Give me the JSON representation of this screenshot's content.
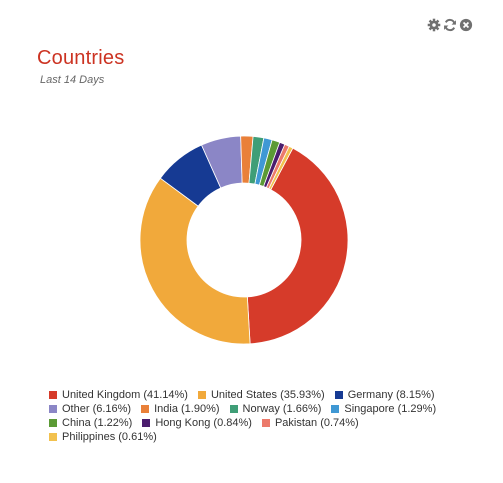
{
  "widget": {
    "title": "Countries",
    "subtitle": "Last 14 Days",
    "title_color": "#cc3322",
    "toolbar": {
      "icons": [
        "gear-icon",
        "refresh-icon",
        "close-icon"
      ]
    }
  },
  "chart_data": {
    "type": "pie",
    "subtype": "donut",
    "legend_position": "bottom",
    "series": [
      {
        "name": "United Kingdom",
        "value": 41.14,
        "label": "United Kingdom (41.14%)",
        "color": "#d63b2a"
      },
      {
        "name": "United States",
        "value": 35.93,
        "label": "United States (35.93%)",
        "color": "#f1a93b"
      },
      {
        "name": "Germany",
        "value": 8.15,
        "label": "Germany (8.15%)",
        "color": "#163a93"
      },
      {
        "name": "Other",
        "value": 6.16,
        "label": "Other (6.16%)",
        "color": "#8b86c6"
      },
      {
        "name": "India",
        "value": 1.9,
        "label": "India (1.90%)",
        "color": "#e98039"
      },
      {
        "name": "Norway",
        "value": 1.66,
        "label": "Norway (1.66%)",
        "color": "#3f9e77"
      },
      {
        "name": "Singapore",
        "value": 1.29,
        "label": "Singapore (1.29%)",
        "color": "#3f98d4"
      },
      {
        "name": "China",
        "value": 1.22,
        "label": "China (1.22%)",
        "color": "#5b9a35"
      },
      {
        "name": "Hong Kong",
        "value": 0.84,
        "label": "Hong Kong (0.84%)",
        "color": "#4b1d6e"
      },
      {
        "name": "Pakistan",
        "value": 0.74,
        "label": "Pakistan (0.74%)",
        "color": "#ec7a6b"
      },
      {
        "name": "Philippines",
        "value": 0.61,
        "label": "Philippines (0.61%)",
        "color": "#f2c14e"
      }
    ]
  }
}
